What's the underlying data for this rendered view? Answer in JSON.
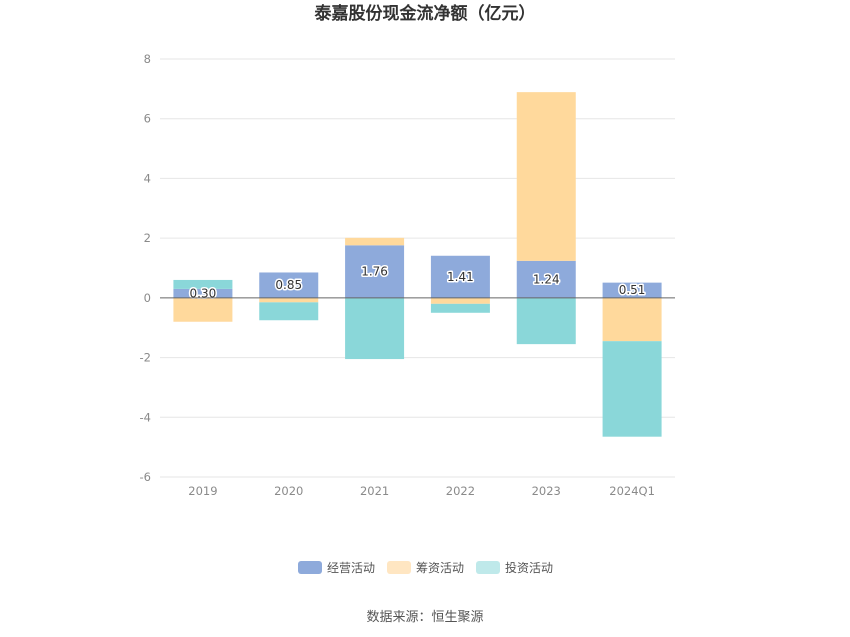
{
  "chart_data": {
    "type": "bar",
    "stacked": true,
    "title": "泰嘉股份现金流净额（亿元）",
    "categories": [
      "2019",
      "2020",
      "2021",
      "2022",
      "2023",
      "2024Q1"
    ],
    "series": [
      {
        "name": "经营活动",
        "color": "#8eaadb",
        "values": [
          0.3,
          0.85,
          1.76,
          1.41,
          1.24,
          0.51
        ],
        "show_labels": true
      },
      {
        "name": "筹资活动",
        "color": "#ffd99c",
        "values": [
          -0.8,
          -0.15,
          0.25,
          -0.2,
          5.65,
          -1.45
        ],
        "show_labels": false
      },
      {
        "name": "投资活动",
        "color": "#8ad7d9",
        "values": [
          0.3,
          -0.6,
          -2.05,
          -0.3,
          -1.55,
          -3.2
        ],
        "show_labels": false
      }
    ],
    "ylim": [
      -6,
      8
    ],
    "yticks": [
      -6,
      -4,
      -2,
      0,
      2,
      4,
      6,
      8
    ],
    "grid": true,
    "legend_position": "bottom-center"
  },
  "legend_colors": [
    "#8eaadb",
    "#ffe6c2",
    "#bfe9ea"
  ],
  "source": "数据来源：恒生聚源"
}
